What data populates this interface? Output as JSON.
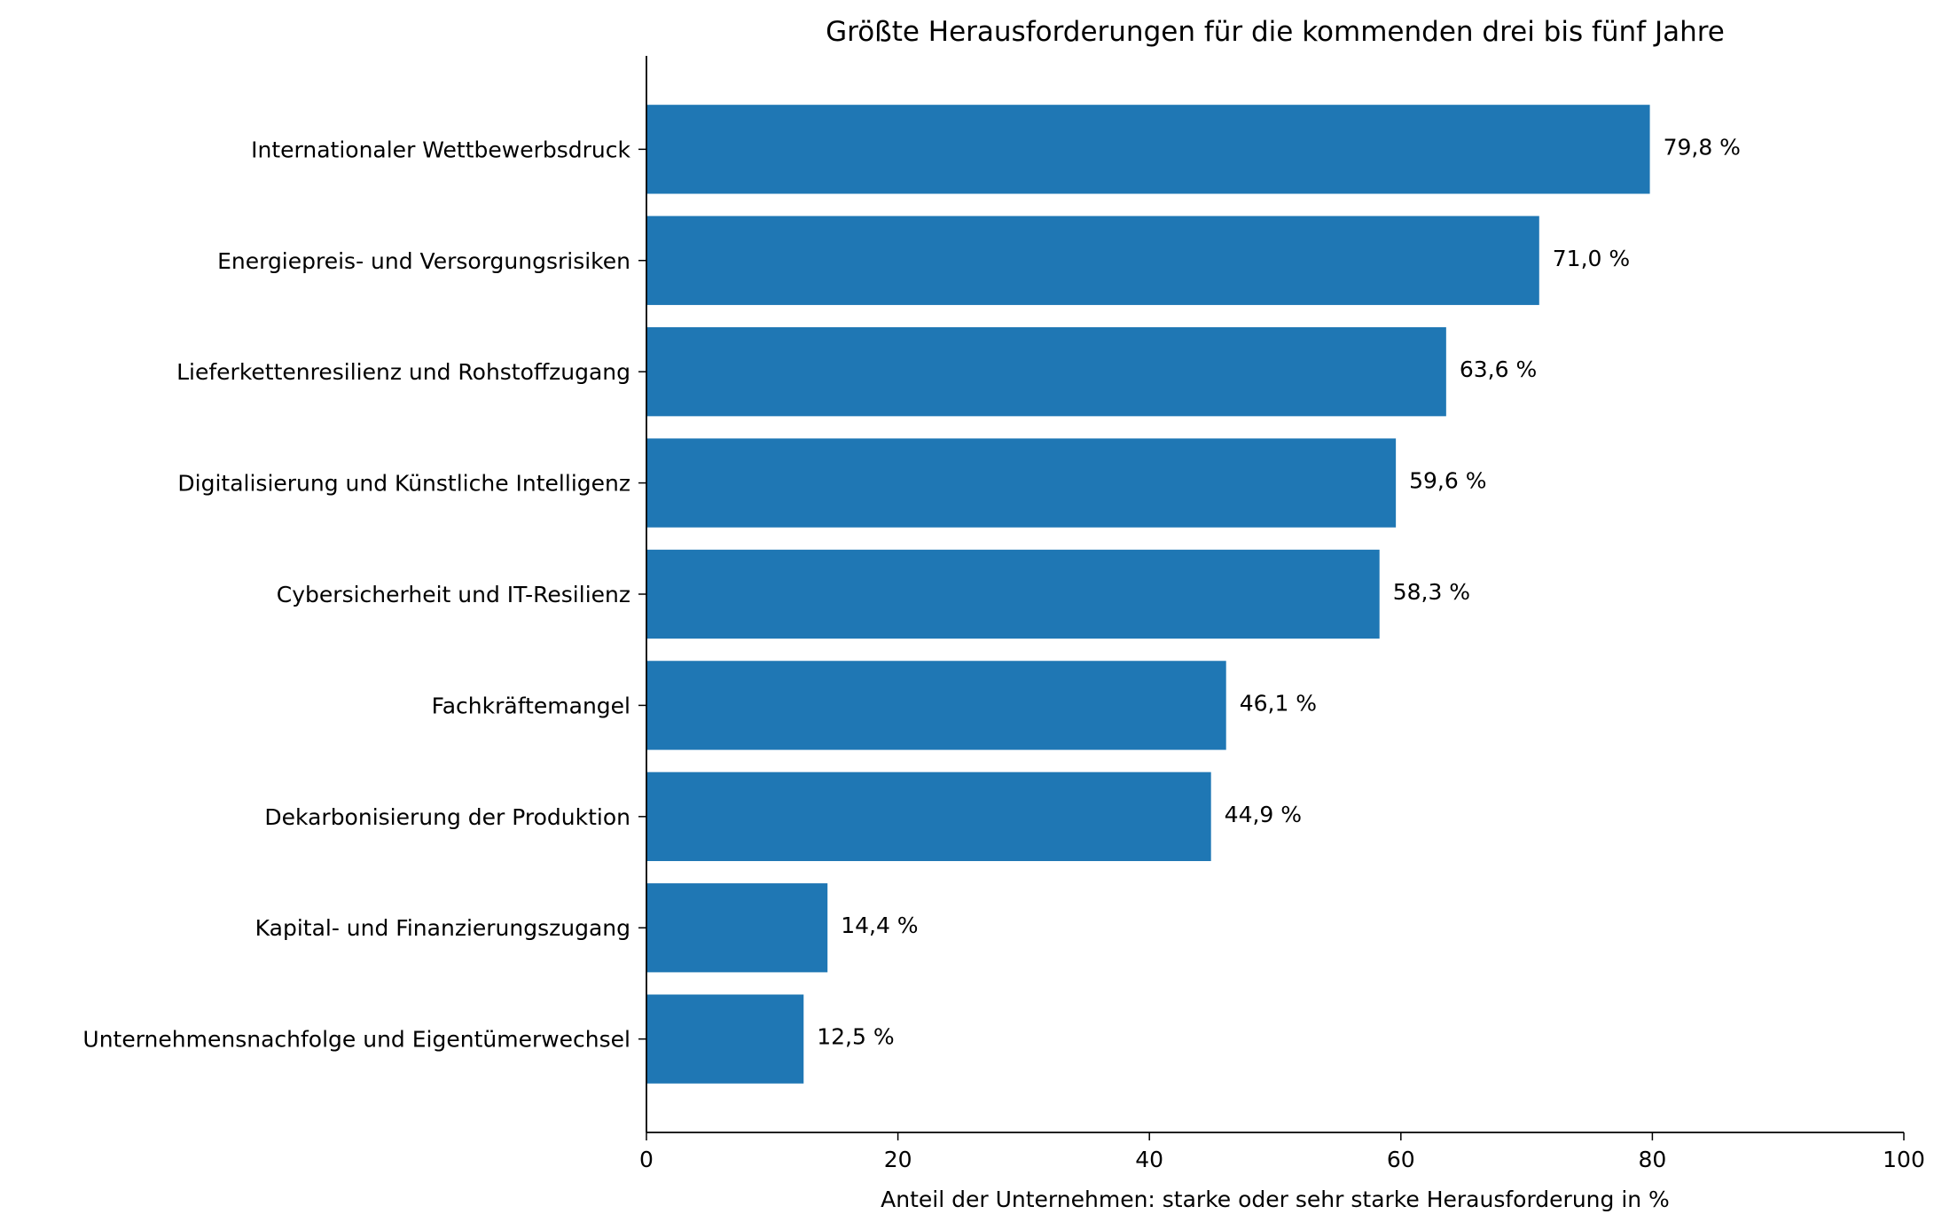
{
  "chart_data": {
    "type": "bar",
    "orientation": "horizontal",
    "title": "Größte Herausforderungen für die kommenden drei bis fünf Jahre",
    "xlabel": "Anteil der Unternehmen: starke oder sehr starke Herausforderung in %",
    "ylabel": "",
    "xlim": [
      0,
      100
    ],
    "x_ticks": [
      0,
      20,
      40,
      60,
      80,
      100
    ],
    "grid": false,
    "bar_color": "#1f77b4",
    "categories": [
      "Internationaler Wettbewerbsdruck",
      "Energiepreis- und Versorgungsrisiken",
      "Lieferkettenresilienz und Rohstoffzugang",
      "Digitalisierung und Künstliche Intelligenz",
      "Cybersicherheit und IT-Resilienz",
      "Fachkräftemangel",
      "Dekarbonisierung der Produktion",
      "Kapital- und Finanzierungszugang",
      "Unternehmensnachfolge und Eigentümerwechsel"
    ],
    "values": [
      79.8,
      71.0,
      63.6,
      59.6,
      58.3,
      46.1,
      44.9,
      14.4,
      12.5
    ],
    "value_labels": [
      "79,8 %",
      "71,0 %",
      "63,6 %",
      "59,6 %",
      "58,3 %",
      "46,1 %",
      "44,9 %",
      "14,4 %",
      "12,5 %"
    ]
  }
}
